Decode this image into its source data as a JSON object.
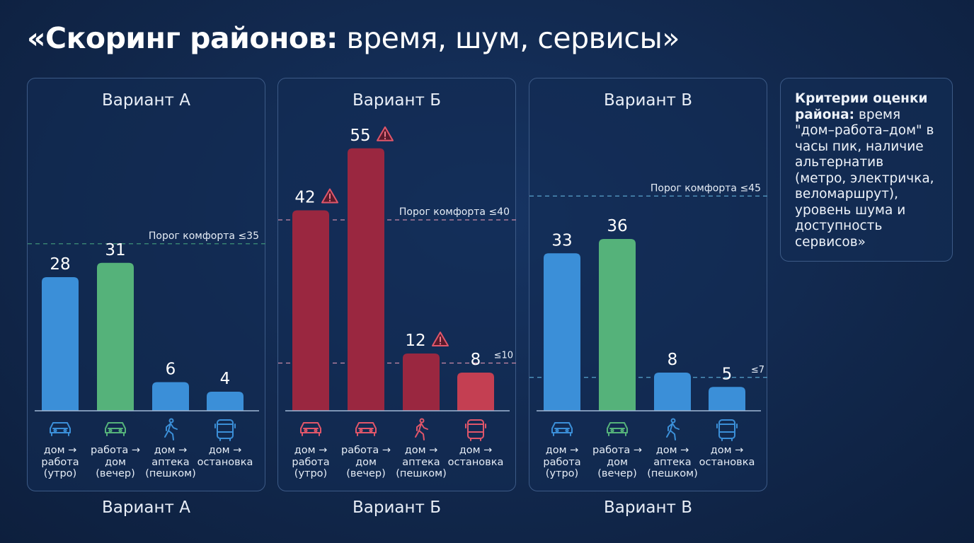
{
  "title": {
    "bold": "«Скоринг районов:",
    "light": "время, шум, сервисы»"
  },
  "criteria": {
    "bold": "Критерии оценки района:",
    "text": "время \"дом–работа–дом\" в часы пик, наличие альтернатив (метро, электричка, веломаршрут), уровень шума и доступность сервисов»"
  },
  "colors": {
    "blue": "#3b8fd8",
    "green": "#55b27a",
    "dark_red": "#9a2740",
    "red": "#c43f52",
    "background": "#12284b"
  },
  "chart_data": [
    {
      "type": "bar",
      "title": "Вариант А",
      "bottom_label": "Вариант А",
      "categories": [
        "дом → работа (утро)",
        "работа → дом (вечер)",
        "дом → аптека (пешком)",
        "дом → остановка"
      ],
      "icons": [
        "car-icon",
        "car-icon",
        "walking-person-icon",
        "bus-icon"
      ],
      "values": [
        28,
        31,
        6,
        4
      ],
      "bar_colors": [
        "#3b8fd8",
        "#55b27a",
        "#3b8fd8",
        "#3b8fd8"
      ],
      "warnings": [
        false,
        false,
        false,
        false
      ],
      "thresholds": [
        {
          "value": 35,
          "label": "Порог комфорта ≤35",
          "color": "#3f9278"
        }
      ],
      "ylim": [
        0,
        60
      ]
    },
    {
      "type": "bar",
      "title": "Вариант Б",
      "bottom_label": "Вариант Б",
      "categories": [
        "дом → работа (утро)",
        "работа → дом (вечер)",
        "дом → аптека (пешком)",
        "дом → остановка"
      ],
      "icons": [
        "car-icon",
        "car-icon",
        "walking-person-icon",
        "bus-icon"
      ],
      "values": [
        42,
        55,
        12,
        8
      ],
      "bar_colors": [
        "#9a2740",
        "#9a2740",
        "#9a2740",
        "#c43f52"
      ],
      "warnings": [
        true,
        true,
        true,
        false
      ],
      "thresholds": [
        {
          "value": 40,
          "label": "Порог комфорта ≤40",
          "color": "#c98aa8"
        },
        {
          "value": 10,
          "label": "≤10",
          "color": "#c98aa8"
        }
      ],
      "ylim": [
        0,
        60
      ]
    },
    {
      "type": "bar",
      "title": "Вариант В",
      "bottom_label": "Вариант В",
      "categories": [
        "дом → работа (утро)",
        "работа → дом (вечер)",
        "дом → аптека (пешком)",
        "дом → остановка"
      ],
      "icons": [
        "car-icon",
        "car-icon",
        "walking-person-icon",
        "bus-icon"
      ],
      "values": [
        33,
        36,
        8,
        5
      ],
      "bar_colors": [
        "#3b8fd8",
        "#55b27a",
        "#3b8fd8",
        "#3b8fd8"
      ],
      "warnings": [
        false,
        false,
        false,
        false
      ],
      "thresholds": [
        {
          "value": 45,
          "label": "Порог комфорта ≤45",
          "color": "#5aa3cc"
        },
        {
          "value": 7,
          "label": "≤7",
          "color": "#5aa3cc"
        }
      ],
      "ylim": [
        0,
        60
      ]
    }
  ]
}
